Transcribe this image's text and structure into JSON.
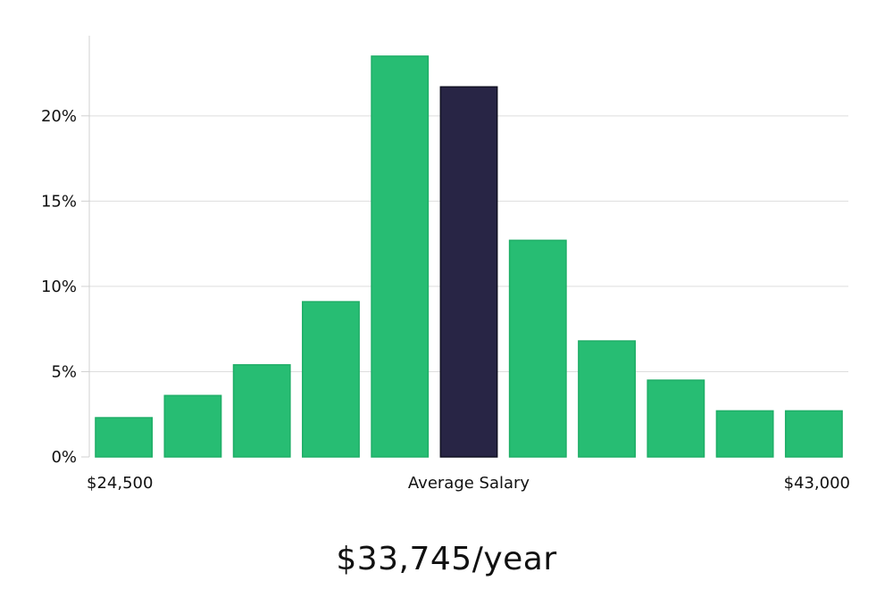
{
  "chart_data": {
    "type": "bar",
    "values": [
      2.3,
      3.6,
      5.4,
      9.1,
      23.5,
      21.7,
      12.7,
      6.8,
      4.5,
      2.7,
      2.7
    ],
    "highlight_index": 5,
    "ylim": [
      0,
      24.7
    ],
    "yticks": [
      0,
      5,
      10,
      15,
      20
    ],
    "ytick_labels": [
      "0%",
      "5%",
      "10%",
      "15%",
      "20%"
    ],
    "x_labels": {
      "left": "$24,500",
      "center": "Average Salary",
      "right": "$43,000"
    },
    "grid": true,
    "colors": {
      "bar": "#27bd73",
      "bar_edge": "#1fae67",
      "highlight": "#282545",
      "highlight_edge": "#111122",
      "grid": "#dddddd",
      "axis": "#d0d0d0",
      "text": "#111111"
    }
  },
  "summary": {
    "average_salary": "$33,745/year"
  }
}
